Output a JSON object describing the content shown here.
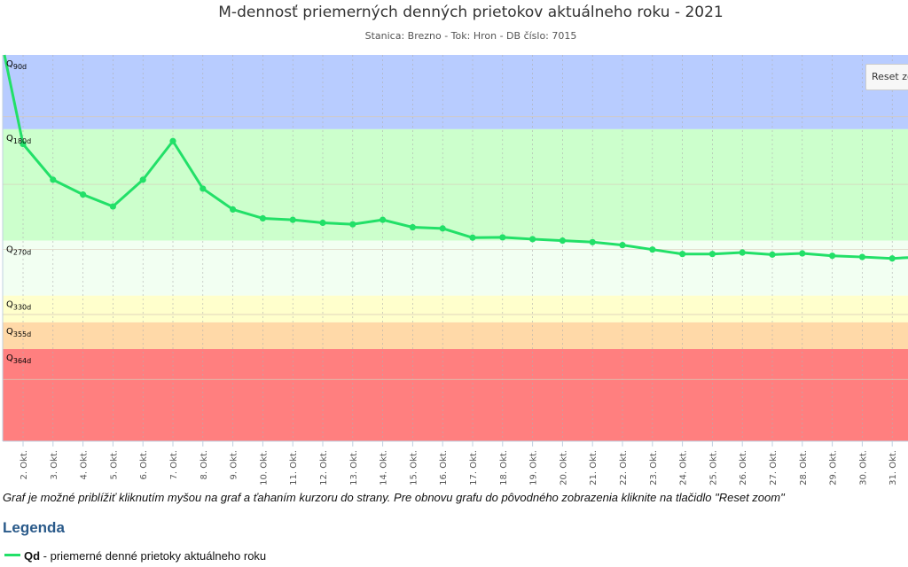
{
  "chart_data": {
    "type": "line",
    "title": "M-dennosť priemerných denných prietokov aktuálneho roku - 2021",
    "subtitle": "Stanica: Brezno - Tok: Hron - DB číslo: 7015",
    "categories": [
      "2. Okt.",
      "3. Okt.",
      "4. Okt.",
      "5. Okt.",
      "6. Okt.",
      "7. Okt.",
      "8. Okt.",
      "9. Okt.",
      "10. Okt.",
      "11. Okt.",
      "12. Okt.",
      "13. Okt.",
      "14. Okt.",
      "15. Okt.",
      "16. Okt.",
      "17. Okt.",
      "18. Okt.",
      "19. Okt.",
      "20. Okt.",
      "21. Okt.",
      "22. Okt.",
      "23. Okt.",
      "24. Okt.",
      "25. Okt.",
      "26. Okt.",
      "27. Okt.",
      "28. Okt.",
      "29. Okt.",
      "30. Okt.",
      "31. Okt."
    ],
    "series": [
      {
        "name": "Qd",
        "color": "#22e068",
        "start_value": 100,
        "values": [
          70,
          58,
          53,
          49,
          58,
          71,
          55,
          48,
          45,
          44.5,
          43.5,
          43,
          44.5,
          42,
          41.6,
          38.5,
          38.6,
          38,
          37.5,
          37,
          36,
          34.5,
          33,
          33,
          33.5,
          32.8,
          33.2,
          32.4,
          32,
          31.5
        ],
        "end_value": 31.8
      }
    ],
    "ylim": [
      -30,
      100
    ],
    "grid": true,
    "bands": [
      {
        "label_base": "Q",
        "label_sub": "90d",
        "from": 75,
        "to": 100,
        "color": "#b8ccff"
      },
      {
        "label_base": "Q",
        "label_sub": "180d",
        "from": 37.5,
        "to": 75,
        "color": "#ccffcc"
      },
      {
        "label_base": "Q",
        "label_sub": "270d",
        "from": 19,
        "to": 37.5,
        "color": "#f2fff2"
      },
      {
        "label_base": "Q",
        "label_sub": "330d",
        "from": 10,
        "to": 19,
        "color": "#ffffcc"
      },
      {
        "label_base": "Q",
        "label_sub": "355d",
        "from": 1,
        "to": 10,
        "color": "#ffd9a8"
      },
      {
        "label_base": "Q",
        "label_sub": "364d",
        "from": -30,
        "to": 1,
        "color": "#ff7f7f"
      }
    ]
  },
  "reset_zoom_label": "Reset zoom",
  "hint": "Graf je možné priblížiť kliknutím myšou na graf a ťahaním kurzoru do strany. Pre obnovu grafu do pôvodného zobrazenia kliknite na tlačidlo \"Reset zoom\"",
  "legend": {
    "heading": "Legenda",
    "items": [
      {
        "key": "Qd",
        "text": " - priemerné denné prietoky aktuálneho roku"
      }
    ]
  }
}
